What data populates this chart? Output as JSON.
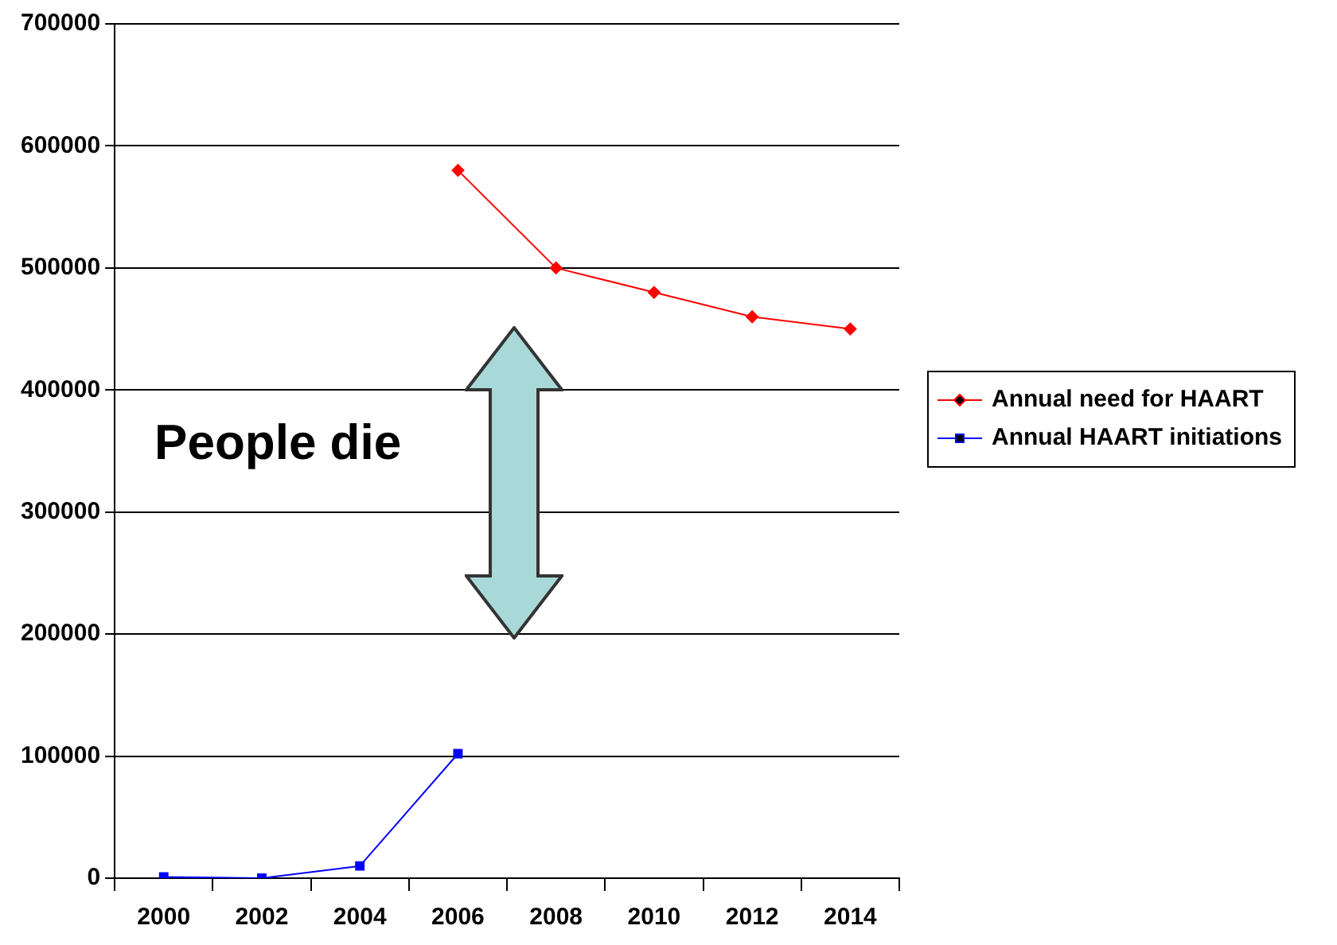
{
  "chart_data": {
    "type": "line",
    "categories": [
      "2000",
      "2002",
      "2004",
      "2006",
      "2008",
      "2010",
      "2012",
      "2014"
    ],
    "series": [
      {
        "name": "Annual need for HAART",
        "color": "#ff0000",
        "marker": "diamond",
        "values": [
          null,
          null,
          null,
          580000,
          500000,
          480000,
          460000,
          450000
        ]
      },
      {
        "name": "Annual HAART initiations",
        "color": "#0000ff",
        "marker": "square",
        "values": [
          1000,
          0,
          10000,
          102000,
          null,
          null,
          null,
          null
        ]
      }
    ],
    "ylim": [
      0,
      700000
    ],
    "yticks": [
      0,
      100000,
      200000,
      300000,
      400000,
      500000,
      600000,
      700000
    ],
    "grid": "y",
    "legend": "right",
    "annotations": [
      "People die"
    ]
  }
}
